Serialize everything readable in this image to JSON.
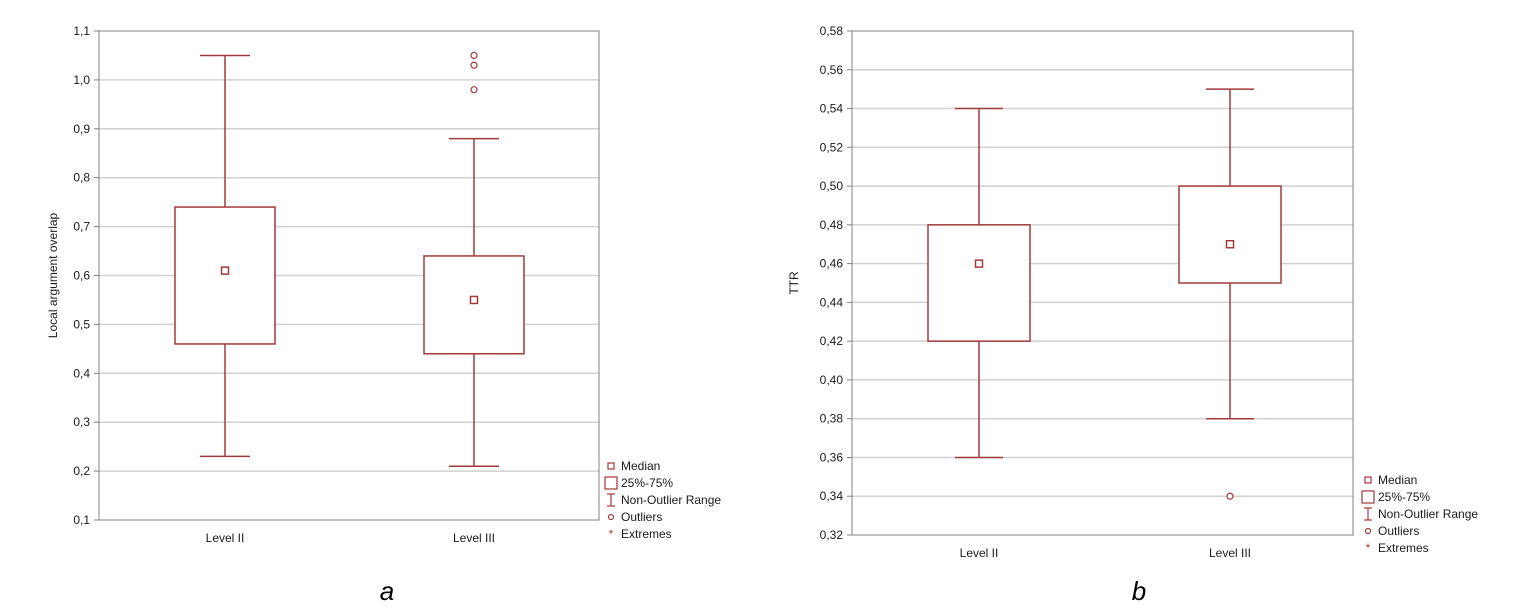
{
  "colors": {
    "box": "#a33a3a",
    "grid": "#d0d0d0",
    "axis": "#808080",
    "text": "#1a1a1a"
  },
  "legend_entries": [
    "Median",
    "25%-75%",
    "Non-Outlier Range",
    "Outliers",
    "Extremes"
  ],
  "panel_a_caption": "a",
  "panel_b_caption": "b",
  "chart_data": [
    {
      "type": "box",
      "ylabel": "Local argument overlap",
      "ylim": [
        0.1,
        1.1
      ],
      "yticks": [
        0.1,
        0.2,
        0.3,
        0.4,
        0.5,
        0.6,
        0.7,
        0.8,
        0.9,
        1.0,
        1.1
      ],
      "ytick_labels": [
        "0,1",
        "0,2",
        "0,3",
        "0,4",
        "0,5",
        "0,6",
        "0,7",
        "0,8",
        "0,9",
        "1,0",
        "1,1"
      ],
      "grid": true,
      "legend_position": "bottom-right outside",
      "categories": [
        "Level II",
        "Level III"
      ],
      "boxes": [
        {
          "category": "Level II",
          "median": 0.61,
          "q1": 0.46,
          "q3": 0.74,
          "whisker_low": 0.23,
          "whisker_high": 1.05,
          "outliers": []
        },
        {
          "category": "Level III",
          "median": 0.55,
          "q1": 0.44,
          "q3": 0.64,
          "whisker_low": 0.21,
          "whisker_high": 0.88,
          "outliers": [
            0.98,
            1.03,
            1.05
          ]
        }
      ]
    },
    {
      "type": "box",
      "ylabel": "TTR",
      "ylim": [
        0.32,
        0.58
      ],
      "yticks": [
        0.32,
        0.34,
        0.36,
        0.38,
        0.4,
        0.42,
        0.44,
        0.46,
        0.48,
        0.5,
        0.52,
        0.54,
        0.56,
        0.58
      ],
      "ytick_labels": [
        "0,32",
        "0,34",
        "0,36",
        "0,38",
        "0,40",
        "0,42",
        "0,44",
        "0,46",
        "0,48",
        "0,50",
        "0,52",
        "0,54",
        "0,56",
        "0,58"
      ],
      "grid": true,
      "legend_position": "bottom-right outside",
      "categories": [
        "Level II",
        "Level III"
      ],
      "boxes": [
        {
          "category": "Level II",
          "median": 0.46,
          "q1": 0.42,
          "q3": 0.48,
          "whisker_low": 0.36,
          "whisker_high": 0.54,
          "outliers": []
        },
        {
          "category": "Level III",
          "median": 0.47,
          "q1": 0.45,
          "q3": 0.5,
          "whisker_low": 0.38,
          "whisker_high": 0.55,
          "outliers": [
            0.34
          ]
        }
      ]
    }
  ]
}
